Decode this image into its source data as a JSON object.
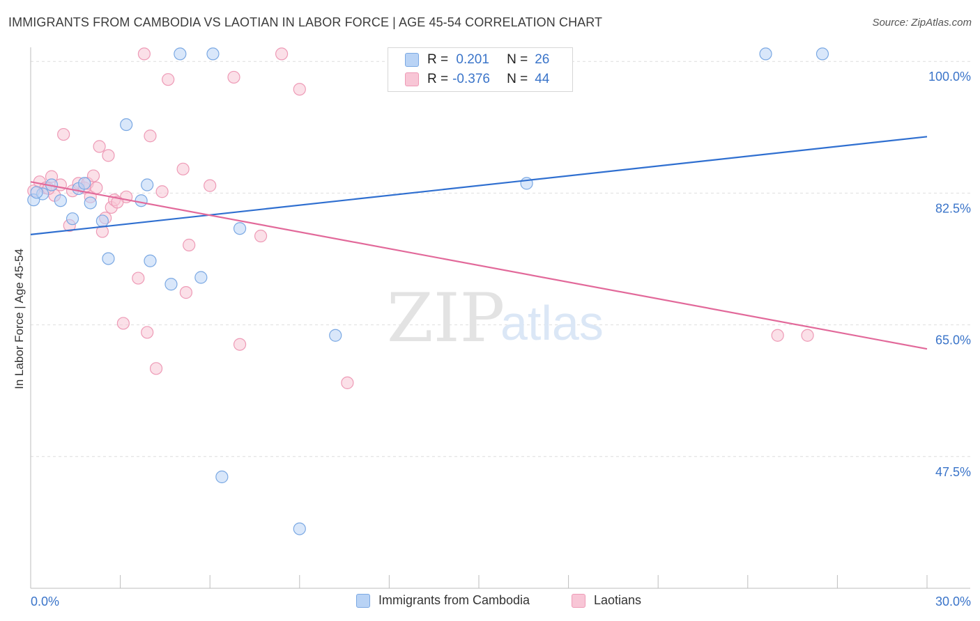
{
  "title": "IMMIGRANTS FROM CAMBODIA VS LAOTIAN IN LABOR FORCE | AGE 45-54 CORRELATION CHART",
  "source": "Source: ZipAtlas.com",
  "watermark": {
    "zip": "ZIP",
    "atlas": "atlas"
  },
  "legend": {
    "rows": [
      {
        "r_label": "R =",
        "r_value": " 0.201",
        "n_label": "N =",
        "n_value": "26"
      },
      {
        "r_label": "R =",
        "r_value": "-0.376",
        "n_label": "N =",
        "n_value": "44"
      }
    ]
  },
  "colors": {
    "cambodia_fill": "#b9d3f5",
    "cambodia_stroke": "#7aa8e3",
    "cambodia_line": "#2f6fd0",
    "laotian_fill": "#f8c6d6",
    "laotian_stroke": "#ee9ab6",
    "laotian_line": "#e2699a",
    "axis_text": "#3a74c9",
    "grid": "#dedede"
  },
  "chart_data": {
    "type": "scatter",
    "title": "IMMIGRANTS FROM CAMBODIA VS LAOTIAN IN LABOR FORCE | AGE 45-54 CORRELATION CHART",
    "xlabel": "",
    "ylabel": "In Labor Force | Age 45-54",
    "xlim": [
      0.0,
      30.0
    ],
    "ylim": [
      30.0,
      101.5
    ],
    "x_tick_labels": [
      {
        "value": 0.0,
        "label": "0.0%"
      },
      {
        "value": 30.0,
        "label": "30.0%"
      }
    ],
    "y_tick_labels": [
      {
        "value": 100.0,
        "label": "100.0%"
      },
      {
        "value": 82.5,
        "label": "82.5%"
      },
      {
        "value": 65.0,
        "label": "65.0%"
      },
      {
        "value": 47.5,
        "label": "47.5%"
      }
    ],
    "series": [
      {
        "name": "Immigrants from Cambodia",
        "r": 0.201,
        "n": 26,
        "trend": {
          "x": [
            0.0,
            30.0
          ],
          "y": [
            77.0,
            90.0
          ]
        },
        "points": [
          [
            0.1,
            81.6
          ],
          [
            0.4,
            82.4
          ],
          [
            0.7,
            83.6
          ],
          [
            1.0,
            81.5
          ],
          [
            1.4,
            79.1
          ],
          [
            1.6,
            83.1
          ],
          [
            1.8,
            83.8
          ],
          [
            2.0,
            81.2
          ],
          [
            2.4,
            78.8
          ],
          [
            2.6,
            73.8
          ],
          [
            3.2,
            91.6
          ],
          [
            3.7,
            81.5
          ],
          [
            3.9,
            83.6
          ],
          [
            4.0,
            73.5
          ],
          [
            4.7,
            70.4
          ],
          [
            5.0,
            101.0
          ],
          [
            5.7,
            71.3
          ],
          [
            6.1,
            101.0
          ],
          [
            6.4,
            44.8
          ],
          [
            7.0,
            77.8
          ],
          [
            9.0,
            37.9
          ],
          [
            10.2,
            63.6
          ],
          [
            16.6,
            83.8
          ],
          [
            24.6,
            101.0
          ],
          [
            26.5,
            101.0
          ],
          [
            0.2,
            82.6
          ]
        ]
      },
      {
        "name": "Laotians",
        "r": -0.376,
        "n": 44,
        "trend": {
          "x": [
            0.0,
            30.0
          ],
          "y": [
            84.0,
            61.8
          ]
        },
        "points": [
          [
            0.1,
            82.8
          ],
          [
            0.3,
            84.0
          ],
          [
            0.5,
            83.2
          ],
          [
            0.7,
            84.7
          ],
          [
            0.8,
            82.2
          ],
          [
            1.0,
            83.6
          ],
          [
            1.1,
            90.3
          ],
          [
            1.3,
            78.2
          ],
          [
            1.4,
            82.8
          ],
          [
            1.6,
            83.8
          ],
          [
            1.8,
            83.2
          ],
          [
            1.9,
            83.8
          ],
          [
            2.0,
            82.0
          ],
          [
            2.1,
            84.8
          ],
          [
            2.2,
            83.2
          ],
          [
            2.3,
            88.7
          ],
          [
            2.4,
            77.4
          ],
          [
            2.5,
            79.2
          ],
          [
            2.6,
            87.5
          ],
          [
            2.7,
            80.6
          ],
          [
            2.8,
            81.6
          ],
          [
            3.1,
            65.2
          ],
          [
            3.2,
            82.0
          ],
          [
            3.6,
            71.2
          ],
          [
            3.8,
            101.0
          ],
          [
            3.9,
            64.0
          ],
          [
            4.0,
            90.1
          ],
          [
            4.2,
            59.2
          ],
          [
            4.4,
            82.7
          ],
          [
            4.6,
            97.6
          ],
          [
            5.1,
            85.7
          ],
          [
            5.2,
            69.3
          ],
          [
            5.3,
            75.6
          ],
          [
            6.0,
            83.5
          ],
          [
            6.8,
            97.9
          ],
          [
            7.0,
            62.4
          ],
          [
            7.7,
            76.8
          ],
          [
            8.4,
            101.0
          ],
          [
            9.0,
            96.3
          ],
          [
            10.6,
            57.3
          ],
          [
            25.0,
            63.6
          ],
          [
            26.0,
            63.6
          ],
          [
            0.6,
            83.1
          ],
          [
            2.9,
            81.3
          ]
        ]
      }
    ]
  },
  "bottom_legend": [
    {
      "label": "Immigrants from Cambodia"
    },
    {
      "label": "Laotians"
    }
  ]
}
